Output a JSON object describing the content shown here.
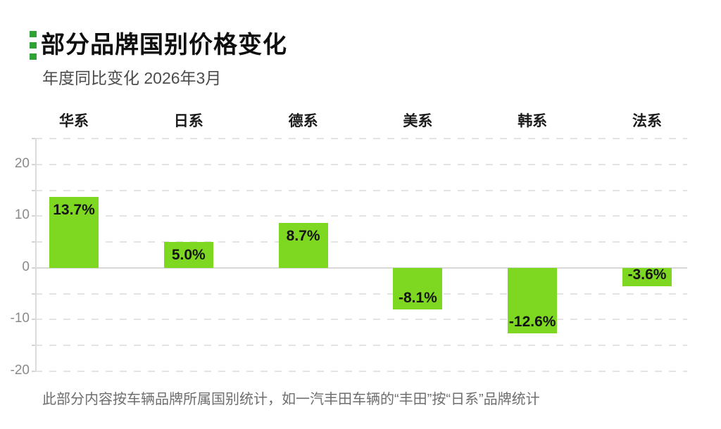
{
  "header": {
    "title": "部分品牌国别价格变化",
    "subtitle": "年度同比变化 2026年3月"
  },
  "footer": {
    "note": "此部分内容按车辆品牌所属国别统计，如一汽丰田车辆的“丰田”按“日系”品牌统计"
  },
  "icons": {
    "title_marker": "green-dashed-vertical-bar"
  },
  "colors": {
    "bar": "#7ed821",
    "accent_marker": "#2fa236",
    "grid_dashed": "#e4e4e4",
    "zero_line": "#d7d7d7",
    "axis_line": "#dcdcdc",
    "value_label_text": "#141414",
    "y_label_text": "#8a8a8a",
    "subtitle_text": "#4c4c4c",
    "footer_text": "#6e6e6e"
  },
  "chart_data": {
    "type": "bar",
    "title": "部分品牌国别价格变化",
    "subtitle": "年度同比变化 2026年3月",
    "categories": [
      "华系",
      "日系",
      "德系",
      "美系",
      "韩系",
      "法系"
    ],
    "values": [
      13.7,
      5.0,
      8.7,
      -8.1,
      -12.6,
      -3.6
    ],
    "value_labels": [
      "13.7%",
      "5.0%",
      "8.7%",
      "-8.1%",
      "-12.6%",
      "-3.6%"
    ],
    "xlabel": "",
    "ylabel": "",
    "ylim": [
      -20,
      25
    ],
    "ytick_labels": [
      20,
      10,
      0,
      -10,
      -20
    ],
    "grid_interval": 5,
    "grid": "dashed-horizontal",
    "zero_line": "solid",
    "legend": "none",
    "bar_color": "#7ed821",
    "annotation": "此部分内容按车辆品牌所属国别统计，如一汽丰田车辆的“丰田”按“日系”品牌统计"
  }
}
